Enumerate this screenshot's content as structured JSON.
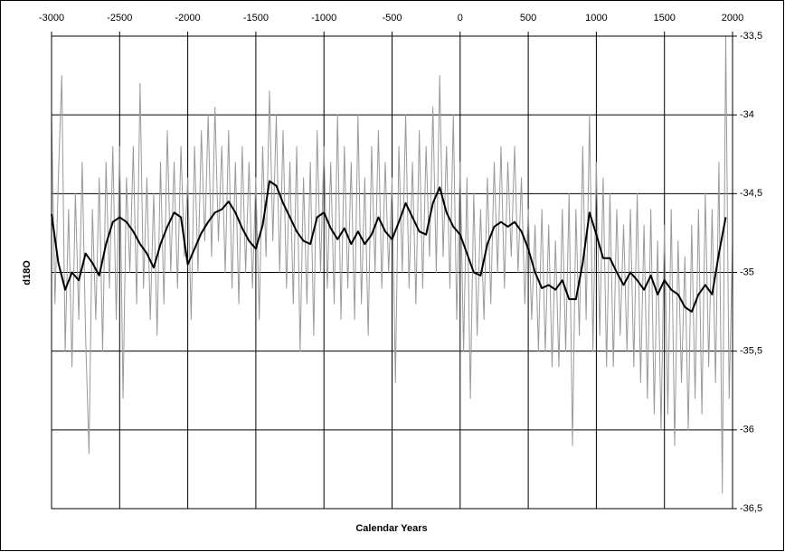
{
  "chart_data": {
    "type": "line",
    "x_label": "Calendar Years",
    "y_label": "d18O",
    "xlim": [
      -3000,
      2000
    ],
    "xticks": [
      -3000,
      -2500,
      -2000,
      -1500,
      -1000,
      -500,
      0,
      500,
      1000,
      1500,
      2000
    ],
    "ylim": [
      -36.5,
      -33.5
    ],
    "yticks": [
      {
        "value": -33.5,
        "label": "-33,5"
      },
      -34,
      {
        "value": -34.5,
        "label": "-34,5"
      },
      -35,
      {
        "value": -35.5,
        "label": "-35,5"
      },
      -36,
      {
        "value": -36.5,
        "label": "-36,5"
      }
    ],
    "grid": true,
    "series": [
      {
        "color": "#999999",
        "x": [
          -3000,
          -2975,
          -2950,
          -2925,
          -2900,
          -2875,
          -2850,
          -2825,
          -2800,
          -2775,
          -2750,
          -2725,
          -2700,
          -2675,
          -2650,
          -2625,
          -2600,
          -2575,
          -2550,
          -2525,
          -2500,
          -2475,
          -2450,
          -2425,
          -2400,
          -2375,
          -2350,
          -2325,
          -2300,
          -2275,
          -2250,
          -2225,
          -2200,
          -2175,
          -2150,
          -2125,
          -2100,
          -2075,
          -2050,
          -2025,
          -2000,
          -1975,
          -1950,
          -1925,
          -1900,
          -1875,
          -1850,
          -1825,
          -1800,
          -1775,
          -1750,
          -1725,
          -1700,
          -1675,
          -1650,
          -1625,
          -1600,
          -1575,
          -1550,
          -1525,
          -1500,
          -1475,
          -1450,
          -1425,
          -1400,
          -1375,
          -1350,
          -1325,
          -1300,
          -1275,
          -1250,
          -1225,
          -1200,
          -1175,
          -1150,
          -1125,
          -1100,
          -1075,
          -1050,
          -1025,
          -1000,
          -975,
          -950,
          -925,
          -900,
          -875,
          -850,
          -825,
          -800,
          -775,
          -750,
          -725,
          -700,
          -675,
          -650,
          -625,
          -600,
          -575,
          -550,
          -525,
          -500,
          -475,
          -450,
          -425,
          -400,
          -375,
          -350,
          -325,
          -300,
          -275,
          -250,
          -225,
          -200,
          -175,
          -150,
          -125,
          -100,
          -75,
          -50,
          -25,
          0,
          25,
          50,
          75,
          100,
          125,
          150,
          175,
          200,
          225,
          250,
          275,
          300,
          325,
          350,
          375,
          400,
          425,
          450,
          475,
          500,
          525,
          550,
          575,
          600,
          625,
          650,
          675,
          700,
          725,
          750,
          775,
          800,
          825,
          850,
          875,
          900,
          925,
          950,
          975,
          1000,
          1025,
          1050,
          1075,
          1100,
          1125,
          1150,
          1175,
          1200,
          1225,
          1250,
          1275,
          1300,
          1325,
          1350,
          1375,
          1400,
          1425,
          1450,
          1475,
          1500,
          1525,
          1550,
          1575,
          1600,
          1625,
          1650,
          1675,
          1700,
          1725,
          1750,
          1775,
          1800,
          1825,
          1850,
          1875,
          1900,
          1925,
          1950,
          1975,
          2000
        ],
        "values": [
          -34.0,
          -35.2,
          -34.4,
          -33.75,
          -35.5,
          -34.6,
          -35.6,
          -34.5,
          -35.3,
          -34.3,
          -35.4,
          -36.15,
          -34.6,
          -35.3,
          -34.4,
          -35.5,
          -34.3,
          -35.1,
          -34.2,
          -35.3,
          -34.2,
          -35.8,
          -34.4,
          -35.0,
          -34.2,
          -35.2,
          -33.8,
          -35.1,
          -34.4,
          -35.3,
          -34.5,
          -35.4,
          -34.3,
          -35.2,
          -34.1,
          -35.0,
          -34.3,
          -35.1,
          -34.2,
          -34.9,
          -34.4,
          -35.3,
          -34.2,
          -35.0,
          -34.1,
          -34.8,
          -34.0,
          -34.9,
          -33.95,
          -34.8,
          -34.2,
          -35.0,
          -34.1,
          -35.1,
          -34.3,
          -35.2,
          -34.2,
          -35.0,
          -34.3,
          -35.1,
          -34.4,
          -35.3,
          -34.2,
          -34.9,
          -33.85,
          -34.8,
          -34.0,
          -35.0,
          -34.1,
          -35.1,
          -34.3,
          -35.2,
          -34.2,
          -35.5,
          -34.4,
          -35.2,
          -34.3,
          -35.4,
          -34.1,
          -35.0,
          -34.2,
          -35.1,
          -34.3,
          -35.2,
          -34.0,
          -35.3,
          -34.2,
          -35.1,
          -34.3,
          -35.3,
          -34.0,
          -35.2,
          -34.4,
          -35.4,
          -34.2,
          -35.0,
          -34.1,
          -35.1,
          -34.3,
          -35.0,
          -34.4,
          -35.7,
          -34.2,
          -35.0,
          -34.0,
          -35.1,
          -34.3,
          -35.2,
          -34.1,
          -35.1,
          -34.2,
          -34.9,
          -33.95,
          -35.0,
          -33.75,
          -34.9,
          -34.2,
          -35.1,
          -34.0,
          -35.3,
          -34.3,
          -35.5,
          -34.4,
          -35.8,
          -34.5,
          -35.4,
          -34.6,
          -35.3,
          -34.4,
          -35.2,
          -34.3,
          -35.0,
          -34.2,
          -35.1,
          -34.3,
          -34.9,
          -34.2,
          -35.0,
          -34.4,
          -35.2,
          -34.6,
          -35.3,
          -34.7,
          -35.5,
          -34.6,
          -35.5,
          -34.7,
          -35.6,
          -34.8,
          -35.6,
          -34.6,
          -35.5,
          -34.5,
          -36.1,
          -34.6,
          -35.4,
          -34.2,
          -35.3,
          -34.0,
          -35.5,
          -34.3,
          -35.4,
          -34.4,
          -35.6,
          -34.5,
          -35.6,
          -34.6,
          -35.4,
          -34.7,
          -35.5,
          -34.6,
          -35.6,
          -34.5,
          -35.7,
          -34.7,
          -35.8,
          -34.6,
          -35.9,
          -34.8,
          -36.0,
          -34.7,
          -35.9,
          -34.6,
          -36.1,
          -34.8,
          -35.7,
          -34.9,
          -36.0,
          -34.7,
          -35.8,
          -34.6,
          -35.9,
          -34.5,
          -35.6,
          -34.6,
          -35.7,
          -34.3,
          -36.4,
          -33.5,
          -35.8,
          -34.8
        ]
      },
      {
        "color": "#000000",
        "x": [
          -3000,
          -2950,
          -2900,
          -2850,
          -2800,
          -2750,
          -2700,
          -2650,
          -2600,
          -2550,
          -2500,
          -2450,
          -2400,
          -2350,
          -2300,
          -2250,
          -2200,
          -2150,
          -2100,
          -2050,
          -2000,
          -1950,
          -1900,
          -1850,
          -1800,
          -1750,
          -1700,
          -1650,
          -1600,
          -1550,
          -1500,
          -1450,
          -1400,
          -1350,
          -1300,
          -1250,
          -1200,
          -1150,
          -1100,
          -1050,
          -1000,
          -950,
          -900,
          -850,
          -800,
          -750,
          -700,
          -650,
          -600,
          -550,
          -500,
          -450,
          -400,
          -350,
          -300,
          -250,
          -200,
          -150,
          -100,
          -50,
          0,
          50,
          100,
          150,
          200,
          250,
          300,
          350,
          400,
          450,
          500,
          550,
          600,
          650,
          700,
          750,
          800,
          850,
          900,
          950,
          1000,
          1050,
          1100,
          1150,
          1200,
          1250,
          1300,
          1350,
          1400,
          1450,
          1500,
          1550,
          1600,
          1650,
          1700,
          1750,
          1800,
          1850,
          1900,
          1950
        ],
        "values": [
          -34.63,
          -34.94,
          -35.11,
          -35.0,
          -35.05,
          -34.88,
          -34.94,
          -35.02,
          -34.82,
          -34.68,
          -34.65,
          -34.68,
          -34.74,
          -34.82,
          -34.88,
          -34.97,
          -34.82,
          -34.71,
          -34.62,
          -34.65,
          -34.95,
          -34.85,
          -34.75,
          -34.68,
          -34.62,
          -34.6,
          -34.55,
          -34.62,
          -34.72,
          -34.8,
          -34.85,
          -34.7,
          -34.42,
          -34.45,
          -34.56,
          -34.65,
          -34.74,
          -34.8,
          -34.82,
          -34.65,
          -34.62,
          -34.72,
          -34.79,
          -34.72,
          -34.82,
          -34.74,
          -34.82,
          -34.76,
          -34.65,
          -34.74,
          -34.79,
          -34.68,
          -34.56,
          -34.65,
          -34.74,
          -34.76,
          -34.56,
          -34.46,
          -34.62,
          -34.71,
          -34.76,
          -34.88,
          -35.0,
          -35.02,
          -34.82,
          -34.71,
          -34.68,
          -34.71,
          -34.68,
          -34.74,
          -34.85,
          -35.0,
          -35.1,
          -35.08,
          -35.11,
          -35.05,
          -35.17,
          -35.17,
          -34.94,
          -34.62,
          -34.76,
          -34.91,
          -34.91,
          -35.0,
          -35.08,
          -35.0,
          -35.05,
          -35.11,
          -35.02,
          -35.14,
          -35.05,
          -35.11,
          -35.14,
          -35.22,
          -35.25,
          -35.14,
          -35.08,
          -35.14,
          -34.88,
          -34.65
        ]
      }
    ]
  }
}
